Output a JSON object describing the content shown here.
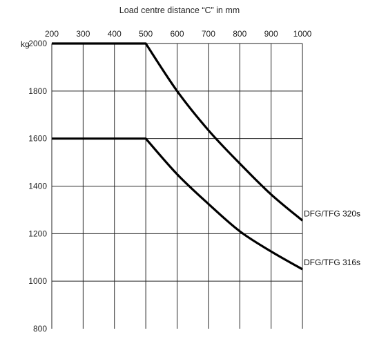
{
  "chart_data": {
    "type": "line",
    "title": "Load centre distance “C” in mm",
    "ylabel_unit": "kg",
    "xlim": [
      200,
      1000
    ],
    "ylim": [
      800,
      2000
    ],
    "xticks": [
      200,
      300,
      400,
      500,
      600,
      700,
      800,
      900,
      1000
    ],
    "yticks": [
      800,
      1000,
      1200,
      1400,
      1600,
      1800,
      2000
    ],
    "x_axis_position": "top",
    "grid": true,
    "series": [
      {
        "name": "DFG/TFG 320s",
        "points": [
          [
            200,
            2000
          ],
          [
            500,
            2000
          ],
          [
            600,
            1800
          ],
          [
            700,
            1635
          ],
          [
            800,
            1495
          ],
          [
            900,
            1365
          ],
          [
            1000,
            1255
          ]
        ]
      },
      {
        "name": "DFG/TFG 316s",
        "points": [
          [
            200,
            1600
          ],
          [
            500,
            1600
          ],
          [
            600,
            1450
          ],
          [
            700,
            1325
          ],
          [
            800,
            1210
          ],
          [
            900,
            1125
          ],
          [
            1000,
            1050
          ]
        ]
      }
    ]
  }
}
